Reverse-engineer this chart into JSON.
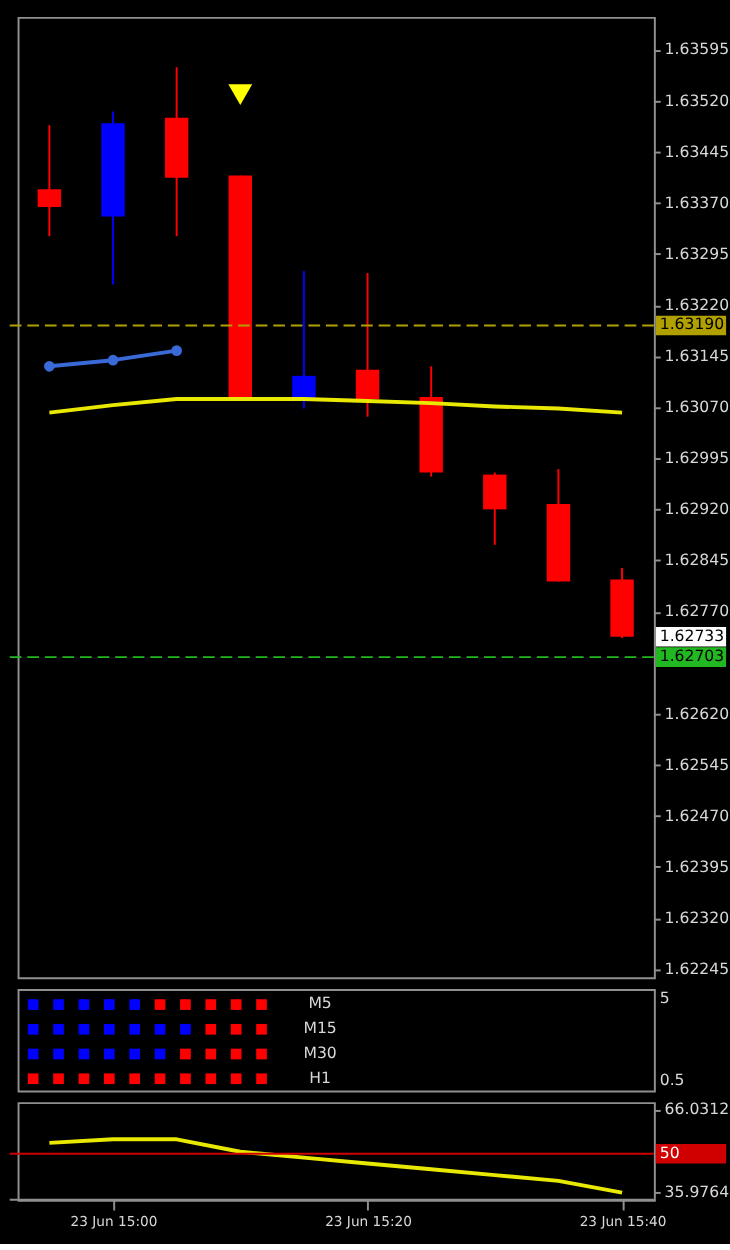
{
  "chart_data": [
    {
      "type": "candlestick",
      "categories": [
        null,
        null,
        null,
        null,
        null,
        null,
        null,
        null,
        null,
        null
      ],
      "ohlc": [
        [
          1.6339,
          1.63484,
          1.63321,
          1.63364
        ],
        [
          1.6335,
          1.63504,
          1.6325,
          1.63487
        ],
        [
          1.63495,
          1.63569,
          1.63321,
          1.63407
        ],
        [
          1.6341,
          1.6341,
          1.63082,
          1.63082
        ],
        [
          1.63079,
          1.6327,
          1.63068,
          1.63116
        ],
        [
          1.63125,
          1.63267,
          1.63056,
          1.63082
        ],
        [
          1.63085,
          1.6313,
          1.62968,
          1.62974
        ],
        [
          1.62971,
          1.62974,
          1.62868,
          1.6292
        ],
        [
          1.62928,
          1.62979,
          1.62814,
          1.62814
        ],
        [
          1.62817,
          1.62834,
          1.62731,
          1.62733
        ]
      ],
      "colors": [
        "#ff0000",
        "#0000ff",
        "#ff0000",
        "#ff0000",
        "#0000ff",
        "#ff0000",
        "#ff0000",
        "#ff0000",
        "#ff0000",
        "#ff0000"
      ],
      "series": [
        {
          "type": "line",
          "color": "#e8e800",
          "values": [
            1.63062,
            1.63073,
            1.63082,
            1.63082,
            1.63082,
            1.63079,
            1.63076,
            1.63071,
            1.63068,
            1.63062
          ]
        },
        {
          "type": "line",
          "color": "#3a6ad8",
          "marker": "circle",
          "values": [
            1.6313,
            1.63139,
            1.63153,
            null,
            null,
            null,
            null,
            null,
            null,
            null
          ]
        },
        {
          "type": "scatter",
          "marker": "triangle",
          "color": "#ffff00",
          "values": [
            null,
            null,
            null,
            1.63529,
            null,
            null,
            null,
            null,
            null,
            null
          ]
        }
      ],
      "ylim": [
        1.62233,
        1.63643
      ],
      "yticks": [
        1.63595,
        {
          "value": 1.6352,
          "label": "1.63520"
        },
        1.63445,
        {
          "value": 1.6337,
          "label": "1.63370"
        },
        1.63295,
        {
          "value": 1.6322,
          "label": "1.63220"
        },
        1.63145,
        {
          "value": 1.6307,
          "label": "1.63070"
        },
        1.62995,
        {
          "value": 1.6292,
          "label": "1.62920"
        },
        1.62845,
        {
          "value": 1.6277,
          "label": "1.62770"
        },
        {
          "value": 1.6262,
          "label": "1.62620"
        },
        1.62545,
        {
          "value": 1.6247,
          "label": "1.62470"
        },
        1.62395,
        {
          "value": 1.6232,
          "label": "1.62320"
        },
        1.62245
      ],
      "ref_lines": [
        {
          "axis": "y",
          "value": 1.6319,
          "label": "1.63190",
          "color": "#b0a000",
          "line_style": "dashed"
        },
        {
          "axis": "y",
          "value": 1.62703,
          "label": "1.62703",
          "color": "#22b822",
          "line_style": "dashed"
        }
      ],
      "annotations": [
        "1.62733"
      ],
      "tick_labels": "y"
    },
    {
      "type": "other",
      "y_categories": [
        "M5",
        "M15",
        "M30",
        "H1"
      ],
      "annotations": [
        "5",
        "0.5"
      ],
      "colors": [
        "#0000ff",
        "#0000ff",
        "#0000ff",
        "#0000ff",
        "#0000ff",
        "#ff0000",
        "#ff0000",
        "#ff0000",
        "#ff0000",
        "#ff0000",
        "#0000ff",
        "#0000ff",
        "#0000ff",
        "#0000ff",
        "#0000ff",
        "#0000ff",
        "#0000ff",
        "#ff0000",
        "#ff0000",
        "#ff0000",
        "#0000ff",
        "#0000ff",
        "#0000ff",
        "#0000ff",
        "#0000ff",
        "#0000ff",
        "#ff0000",
        "#ff0000",
        "#ff0000",
        "#ff0000",
        "#ff0000",
        "#ff0000",
        "#ff0000",
        "#ff0000",
        "#ff0000",
        "#ff0000",
        "#ff0000",
        "#ff0000",
        "#ff0000",
        "#ff0000"
      ]
    },
    {
      "type": "line",
      "categories": [
        null,
        "23 Jun 15:00",
        null,
        null,
        null,
        "23 Jun 15:20",
        null,
        null,
        null,
        "23 Jun 15:40"
      ],
      "ylim": [
        33.4,
        68.6
      ],
      "yticks": [
        66.0312,
        35.9764
      ],
      "series": [
        {
          "color": "#e8e800",
          "values": [
            53.9,
            55.2,
            55.2,
            50.7,
            48.6,
            46.5,
            44.4,
            42.3,
            40.2,
            36.0
          ]
        }
      ],
      "ref_lines": [
        {
          "axis": "y",
          "value": 50,
          "label": "50",
          "color": "#d00000"
        }
      ]
    }
  ]
}
